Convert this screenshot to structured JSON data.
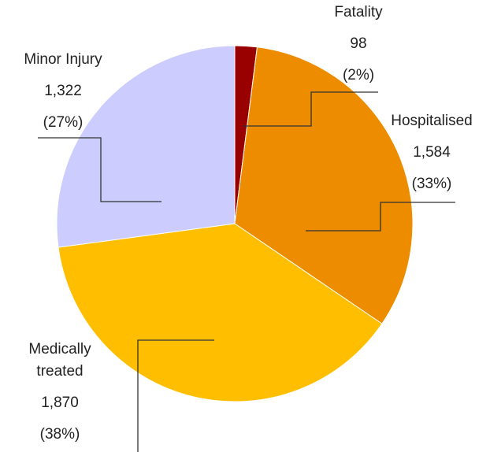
{
  "chart_data": {
    "type": "pie",
    "categories": [
      "Fatality",
      "Hospitalised",
      "Medically treated",
      "Minor Injury"
    ],
    "values": [
      98,
      1584,
      1870,
      1322
    ],
    "value_labels": [
      "98",
      "1,584",
      "1,870",
      "1,322"
    ],
    "percentage_labels": [
      "(2%)",
      "(33%)",
      "(38%)",
      "(27%)"
    ],
    "colors": [
      "#990000",
      "#ee8c00",
      "#ffbf00",
      "#ccccff"
    ]
  }
}
